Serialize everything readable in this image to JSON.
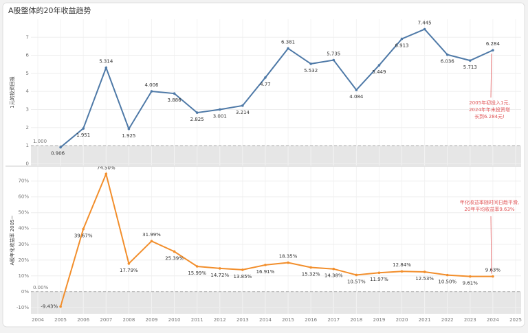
{
  "title": "A股整体的20年收益趋势",
  "chart_data": [
    {
      "type": "line",
      "y_label": "1元的投资回报",
      "x": [
        2005,
        2006,
        2007,
        2008,
        2009,
        2010,
        2011,
        2012,
        2013,
        2014,
        2015,
        2016,
        2017,
        2018,
        2019,
        2020,
        2021,
        2022,
        2023,
        2024
      ],
      "series": [
        {
          "color": "#4e79a7",
          "values": [
            0.906,
            1.951,
            5.314,
            1.925,
            4.006,
            3.886,
            2.825,
            3.001,
            3.214,
            4.77,
            6.381,
            5.532,
            5.735,
            4.084,
            5.449,
            6.913,
            7.445,
            6.036,
            5.713,
            6.284
          ]
        }
      ],
      "xlim": [
        2004,
        2025
      ],
      "ylim": [
        -0.1,
        8.0
      ],
      "yticks": [
        0,
        1,
        2,
        3,
        4,
        5,
        6,
        7
      ],
      "grid": true,
      "reference": {
        "value": 1,
        "label": "1.000"
      },
      "annotation": [
        "2005年初投入1元,",
        "2024年年末投资增",
        "长到6.284元!"
      ]
    },
    {
      "type": "line",
      "y_label": "A股年化收益率 2005~",
      "x": [
        2005,
        2006,
        2007,
        2008,
        2009,
        2010,
        2011,
        2012,
        2013,
        2014,
        2015,
        2016,
        2017,
        2018,
        2019,
        2020,
        2021,
        2022,
        2023,
        2024
      ],
      "series": [
        {
          "color": "#f28e2b",
          "values": [
            -9.43,
            39.67,
            74.5,
            17.79,
            31.99,
            25.39,
            15.99,
            14.72,
            13.85,
            16.91,
            18.35,
            15.32,
            14.38,
            10.57,
            11.97,
            12.84,
            12.53,
            10.5,
            9.61,
            9.63
          ],
          "value_labels": [
            "-9.43%",
            "39.67%",
            "74.50%",
            "17.79%",
            "31.99%",
            "25.39%",
            "15.99%",
            "14.72%",
            "13.85%",
            "16.91%",
            "18.35%",
            "15.32%",
            "14.38%",
            "10.57%",
            "11.97%",
            "12.84%",
            "12.53%",
            "10.50%",
            "9.61%",
            "9.63%"
          ]
        }
      ],
      "xlim": [
        2004,
        2025
      ],
      "xticks": [
        2004,
        2005,
        2006,
        2007,
        2008,
        2009,
        2010,
        2011,
        2012,
        2013,
        2014,
        2015,
        2016,
        2017,
        2018,
        2019,
        2020,
        2021,
        2022,
        2023,
        2024,
        2025
      ],
      "ylim": [
        -14,
        79
      ],
      "yticks": [
        {
          "value": -10,
          "label": "-10%"
        },
        {
          "value": 0,
          "label": "0%"
        },
        {
          "value": 10,
          "label": "10%"
        },
        {
          "value": 20,
          "label": "20%"
        },
        {
          "value": 30,
          "label": "30%"
        },
        {
          "value": 40,
          "label": "40%"
        },
        {
          "value": 50,
          "label": "50%"
        },
        {
          "value": 60,
          "label": "60%"
        },
        {
          "value": 70,
          "label": "70%"
        }
      ],
      "grid": true,
      "reference": {
        "value": 0,
        "label": "0.00%"
      },
      "annotation": [
        "年化收益率随时间日趋平滑,",
        "20年平均收益率9.63%"
      ]
    }
  ]
}
